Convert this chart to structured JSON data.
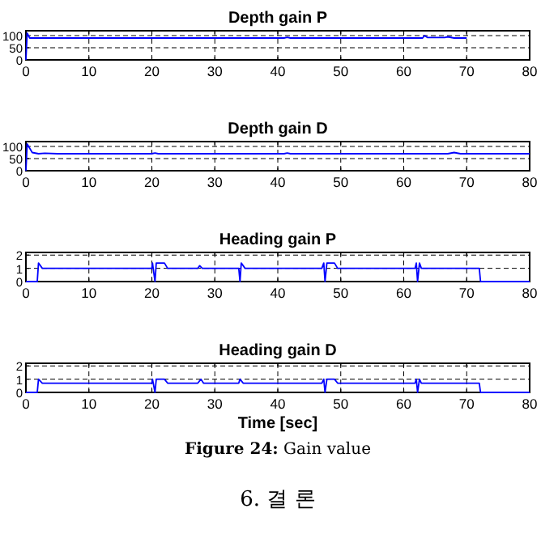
{
  "chart_data": [
    {
      "type": "line",
      "title": "Depth gain P",
      "xlim": [
        0,
        80
      ],
      "xticks": [
        0,
        10,
        20,
        30,
        40,
        50,
        60,
        70,
        80
      ],
      "ylim": [
        0,
        120
      ],
      "yticks": [
        0,
        50,
        100
      ],
      "grid": true,
      "series": [
        {
          "color": "#0000ff",
          "x": [
            0,
            0.2,
            0.6,
            41,
            41.5,
            42,
            63,
            63.3,
            63.8,
            66.5,
            67,
            68,
            70
          ],
          "values": [
            0,
            110,
            90,
            90,
            93,
            90,
            90,
            100,
            92,
            92,
            95,
            90,
            90
          ]
        }
      ]
    },
    {
      "type": "line",
      "title": "Depth gain D",
      "xlim": [
        0,
        80
      ],
      "xticks": [
        0,
        10,
        20,
        30,
        40,
        50,
        60,
        70,
        80
      ],
      "ylim": [
        0,
        120
      ],
      "yticks": [
        0,
        50,
        100
      ],
      "grid": true,
      "series": [
        {
          "color": "#0000ff",
          "x": [
            0,
            0.2,
            1,
            2,
            3,
            5,
            20,
            20.5,
            21,
            41,
            41.5,
            42,
            67,
            68,
            69,
            80
          ],
          "values": [
            0,
            110,
            75,
            70,
            72,
            70,
            70,
            73,
            70,
            70,
            73,
            70,
            70,
            75,
            70,
            70
          ]
        }
      ]
    },
    {
      "type": "line",
      "title": "Heading gain P",
      "xlim": [
        0,
        80
      ],
      "xticks": [
        0,
        10,
        20,
        30,
        40,
        50,
        60,
        70,
        80
      ],
      "ylim": [
        0,
        2.2
      ],
      "yticks": [
        0,
        1,
        2
      ],
      "grid": true,
      "series": [
        {
          "color": "#0000ff",
          "x": [
            0,
            1.8,
            2,
            2.6,
            20,
            20.1,
            20.5,
            20.7,
            22,
            22.5,
            27.3,
            27.6,
            28,
            33.8,
            34,
            34.2,
            34.8,
            47,
            47.3,
            47.5,
            47.8,
            49,
            49.5,
            61.8,
            62,
            62.2,
            62.5,
            62.8,
            72,
            72.2,
            80
          ],
          "values": [
            0,
            0,
            1.4,
            1,
            1,
            1.4,
            0,
            1.4,
            1.4,
            1,
            1,
            1.2,
            1,
            1,
            0,
            1.4,
            1,
            1,
            1.4,
            0,
            1.4,
            1.4,
            1,
            1,
            1.4,
            0,
            1.4,
            1,
            1,
            0,
            0
          ]
        }
      ]
    },
    {
      "type": "line",
      "title": "Heading gain D",
      "xlabel": "Time [sec]",
      "xlim": [
        0,
        80
      ],
      "xticks": [
        0,
        10,
        20,
        30,
        40,
        50,
        60,
        70,
        80
      ],
      "ylim": [
        0,
        2.2
      ],
      "yticks": [
        0,
        1,
        2
      ],
      "grid": true,
      "annotations": [
        "**Figure 24:** Gain value",
        "6. 결 론"
      ],
      "series": [
        {
          "color": "#0000ff",
          "x": [
            0,
            1.8,
            2,
            2.6,
            20,
            20.1,
            20.5,
            20.7,
            22,
            22.5,
            27.3,
            27.8,
            28.2,
            33.8,
            34,
            34.5,
            47,
            47.3,
            47.5,
            47.8,
            49,
            49.5,
            61.8,
            62,
            62.2,
            62.5,
            62.8,
            72,
            72.2,
            80
          ],
          "values": [
            0,
            0,
            1,
            0.7,
            0.7,
            1,
            0,
            1,
            1,
            0.7,
            0.7,
            1,
            0.7,
            0.7,
            1,
            0.7,
            0.7,
            1,
            0,
            1,
            1,
            0.7,
            0.7,
            1,
            0,
            1,
            0.7,
            0.7,
            0,
            0
          ]
        }
      ]
    }
  ]
}
